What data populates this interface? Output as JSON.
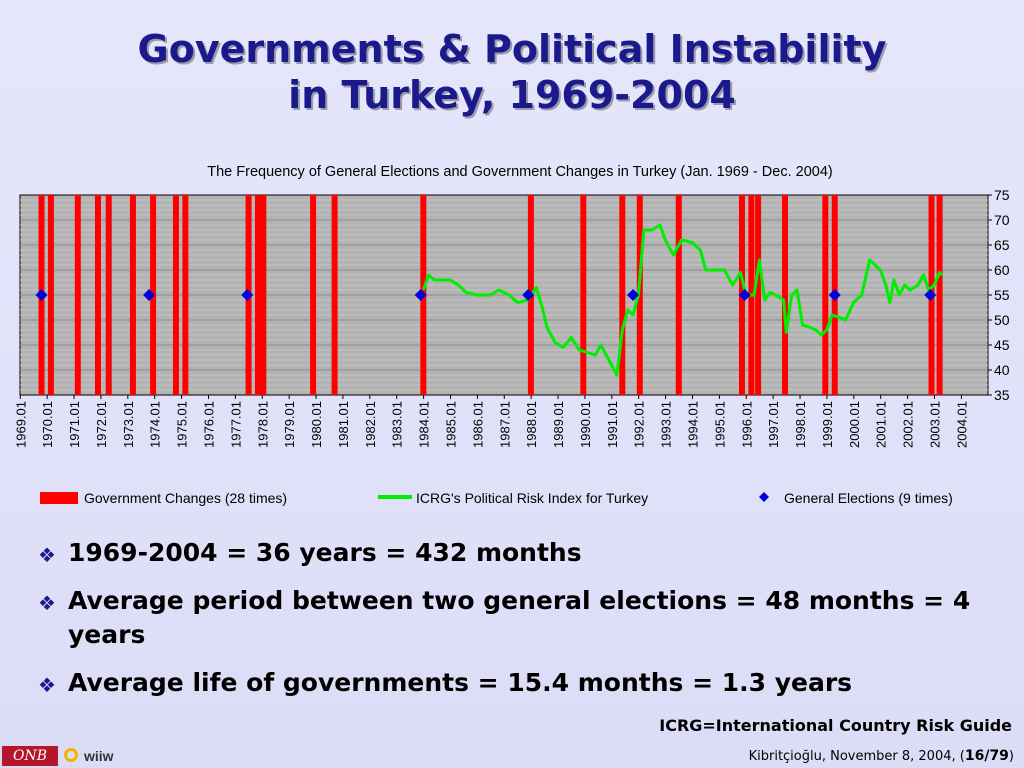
{
  "slide": {
    "title_line1": "Governments & Political Instability",
    "title_line2": "in Turkey, 1969-2004",
    "bullets": [
      "1969-2004 = 36 years = 432 months",
      "Average period between two general elections = 48 months = 4 years",
      "Average life of governments = 15.4 months = 1.3 years"
    ],
    "footnote": "ICRG=International Country Risk Guide",
    "credit_text": "Kibritçioğlu, November 8, 2004, (",
    "credit_page": "16/79",
    "credit_close": ")",
    "logo1_text": "ONB",
    "logo2_text": "wiiw"
  },
  "colors": {
    "title": "#1a1a8c",
    "government_changes": "#ff0000",
    "risk_index": "#00ee00",
    "elections": "#0000dd",
    "plot_bg": "#b3b3b3"
  },
  "chart_data": {
    "type": "line",
    "title": "The Frequency of General Elections and Government Changes in Turkey (Jan. 1969 - Dec. 2004)",
    "x_ticks": [
      "1969.01",
      "1970.01",
      "1971.01",
      "1972.01",
      "1973.01",
      "1974.01",
      "1975.01",
      "1976.01",
      "1977.01",
      "1978.01",
      "1979.01",
      "1980.01",
      "1981.01",
      "1982.01",
      "1983.01",
      "1984.01",
      "1985.01",
      "1986.01",
      "1987.01",
      "1988.01",
      "1989.01",
      "1990.01",
      "1991.01",
      "1992.01",
      "1993.01",
      "1994.01",
      "1995.01",
      "1996.01",
      "1997.01",
      "1998.01",
      "1999.01",
      "2000.01",
      "2001.01",
      "2002.01",
      "2003.01",
      "2004.01"
    ],
    "xlim": [
      1969.0,
      2005.0
    ],
    "y_ticks": [
      35,
      40,
      45,
      50,
      55,
      60,
      65,
      70,
      75
    ],
    "ylim": [
      35,
      75
    ],
    "y_axis_side": "right",
    "grid": true,
    "legend_position": "bottom",
    "government_changes": {
      "name": "Government Changes (28 times)",
      "dates": [
        1969.8,
        1970.15,
        1971.15,
        1971.9,
        1972.3,
        1973.2,
        1973.95,
        1974.8,
        1975.15,
        1977.5,
        1977.85,
        1978.05,
        1979.9,
        1980.7,
        1984.0,
        1988.0,
        1989.95,
        1991.4,
        1992.05,
        1993.5,
        1995.85,
        1996.2,
        1996.45,
        1997.45,
        1998.95,
        1999.3,
        2002.9,
        2003.2
      ]
    },
    "risk_index": {
      "name": "ICRG's Political Risk Index for Turkey",
      "points": [
        [
          1984.0,
          56
        ],
        [
          1984.2,
          59
        ],
        [
          1984.4,
          58
        ],
        [
          1985.0,
          58
        ],
        [
          1985.3,
          57
        ],
        [
          1985.6,
          55.5
        ],
        [
          1986.0,
          55
        ],
        [
          1986.5,
          55
        ],
        [
          1986.8,
          56
        ],
        [
          1987.2,
          55
        ],
        [
          1987.5,
          53.5
        ],
        [
          1987.9,
          54
        ],
        [
          1988.2,
          56.5
        ],
        [
          1988.4,
          53
        ],
        [
          1988.6,
          48.5
        ],
        [
          1988.9,
          45.5
        ],
        [
          1989.2,
          44.5
        ],
        [
          1989.5,
          46.5
        ],
        [
          1989.8,
          44
        ],
        [
          1990.1,
          43.5
        ],
        [
          1990.4,
          43
        ],
        [
          1990.6,
          45
        ],
        [
          1990.9,
          42
        ],
        [
          1991.2,
          39
        ],
        [
          1991.4,
          48
        ],
        [
          1991.6,
          52
        ],
        [
          1991.8,
          51
        ],
        [
          1992.0,
          55
        ],
        [
          1992.2,
          68
        ],
        [
          1992.5,
          68
        ],
        [
          1992.8,
          69
        ],
        [
          1993.0,
          66
        ],
        [
          1993.3,
          63
        ],
        [
          1993.6,
          66
        ],
        [
          1994.0,
          65.5
        ],
        [
          1994.3,
          64
        ],
        [
          1994.5,
          60
        ],
        [
          1994.8,
          60
        ],
        [
          1995.2,
          60
        ],
        [
          1995.5,
          57
        ],
        [
          1995.8,
          59.5
        ],
        [
          1996.0,
          55
        ],
        [
          1996.3,
          55
        ],
        [
          1996.5,
          62
        ],
        [
          1996.7,
          54
        ],
        [
          1996.9,
          55.5
        ],
        [
          1997.1,
          55
        ],
        [
          1997.4,
          54
        ],
        [
          1997.5,
          47.5
        ],
        [
          1997.7,
          55
        ],
        [
          1997.9,
          56
        ],
        [
          1998.1,
          49
        ],
        [
          1998.4,
          48.5
        ],
        [
          1998.6,
          48
        ],
        [
          1998.8,
          47
        ],
        [
          1999.0,
          48
        ],
        [
          1999.2,
          51
        ],
        [
          1999.5,
          50.5
        ],
        [
          1999.7,
          50
        ],
        [
          2000.0,
          53.5
        ],
        [
          2000.3,
          55
        ],
        [
          2000.6,
          62
        ],
        [
          2000.8,
          61
        ],
        [
          2001.0,
          60
        ],
        [
          2001.2,
          57
        ],
        [
          2001.35,
          53.5
        ],
        [
          2001.5,
          58
        ],
        [
          2001.7,
          55
        ],
        [
          2001.9,
          57
        ],
        [
          2002.1,
          56
        ],
        [
          2002.4,
          57
        ],
        [
          2002.6,
          59
        ],
        [
          2002.8,
          56
        ],
        [
          2003.0,
          57
        ],
        [
          2003.2,
          59.5
        ],
        [
          2003.3,
          59
        ]
      ]
    },
    "general_elections": {
      "name": "General Elections (9 times)",
      "dates": [
        1969.8,
        1973.8,
        1977.45,
        1983.9,
        1987.9,
        1991.8,
        1995.95,
        1999.3,
        2002.85
      ],
      "value": 55
    }
  }
}
